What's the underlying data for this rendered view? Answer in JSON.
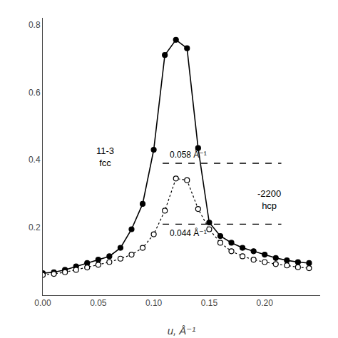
{
  "chart_data": {
    "type": "line",
    "x_title": "u, Å⁻¹",
    "series": [
      {
        "x": [
          0.0,
          0.01,
          0.02,
          0.03,
          0.04,
          0.05,
          0.06,
          0.07,
          0.08,
          0.09,
          0.1,
          0.11,
          0.12,
          0.13,
          0.14,
          0.15,
          0.16,
          0.17,
          0.18,
          0.19,
          0.2,
          0.21,
          0.22,
          0.23,
          0.24
        ],
        "values": [
          0.065,
          0.068,
          0.075,
          0.085,
          0.095,
          0.105,
          0.115,
          0.14,
          0.195,
          0.27,
          0.43,
          0.71,
          0.755,
          0.73,
          0.435,
          0.215,
          0.175,
          0.155,
          0.14,
          0.13,
          0.12,
          0.11,
          0.103,
          0.098,
          0.095
        ],
        "color": "#000000",
        "marker": "filled",
        "line_style": "solid"
      },
      {
        "x": [
          0.0,
          0.01,
          0.02,
          0.03,
          0.04,
          0.05,
          0.06,
          0.07,
          0.08,
          0.09,
          0.1,
          0.11,
          0.12,
          0.13,
          0.14,
          0.15,
          0.16,
          0.17,
          0.18,
          0.19,
          0.2,
          0.21,
          0.22,
          0.23,
          0.24
        ],
        "values": [
          0.06,
          0.063,
          0.068,
          0.075,
          0.082,
          0.09,
          0.098,
          0.108,
          0.12,
          0.14,
          0.18,
          0.25,
          0.345,
          0.34,
          0.255,
          0.195,
          0.155,
          0.13,
          0.115,
          0.105,
          0.098,
          0.092,
          0.088,
          0.083,
          0.08
        ],
        "color": "#000000",
        "marker": "open",
        "line_style": "dot"
      }
    ],
    "hlines": [
      {
        "y": 0.39,
        "x": [
          0.108,
          0.215
        ],
        "label": "0.058 Å⁻¹"
      },
      {
        "y": 0.21,
        "x": [
          0.108,
          0.215
        ],
        "label": "0.044 Å⁻¹"
      }
    ],
    "annotations": [
      "11-3\nfcc",
      "-2200\nhcp"
    ],
    "xlim": [
      0.0,
      0.25
    ],
    "ylim": [
      0.0,
      0.82
    ],
    "xticks": [
      {
        "value": 0.0,
        "label": "0.00"
      },
      0.05,
      {
        "value": 0.1,
        "label": "0.10"
      },
      0.15,
      {
        "value": 0.2,
        "label": "0.20"
      }
    ],
    "yticks": [
      0.2,
      0.4,
      0.6,
      0.8
    ],
    "grid": false
  }
}
